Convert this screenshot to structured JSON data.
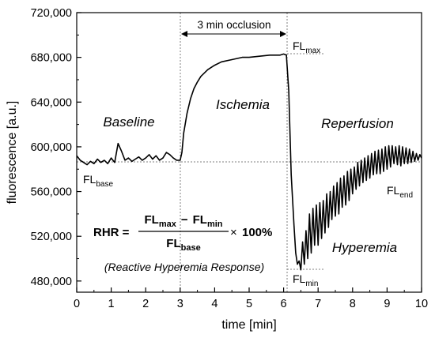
{
  "chart_data": {
    "type": "line",
    "title": "",
    "xlabel": "time [min]",
    "ylabel": "fluorescence [a.u.]",
    "xlim": [
      0,
      10
    ],
    "ylim": [
      470000,
      720000
    ],
    "x_ticks": [
      "0",
      "1",
      "2",
      "3",
      "4",
      "5",
      "6",
      "7",
      "8",
      "9",
      "10"
    ],
    "y_ticks": [
      "480,000",
      "520,000",
      "560,000",
      "600,000",
      "640,000",
      "680,000",
      "720,000"
    ],
    "grid": false,
    "series": [
      {
        "x": [
          0,
          0.1,
          0.2,
          0.3,
          0.4,
          0.5,
          0.6,
          0.7,
          0.8,
          0.9,
          1.0,
          1.1,
          1.2,
          1.3,
          1.4,
          1.5,
          1.6,
          1.7,
          1.8,
          1.9,
          2.0,
          2.1,
          2.2,
          2.3,
          2.4,
          2.5,
          2.6,
          2.7,
          2.8,
          2.9,
          3.0,
          3.05,
          3.1,
          3.2,
          3.3,
          3.4,
          3.5,
          3.6,
          3.8,
          4.0,
          4.2,
          4.5,
          4.8,
          5.0,
          5.3,
          5.6,
          5.9,
          6.0,
          6.08,
          6.15,
          6.22,
          6.3,
          6.35,
          6.4,
          6.45,
          6.5,
          6.55,
          6.6,
          6.65,
          6.7,
          6.75,
          6.8,
          6.85,
          6.9,
          6.95,
          7.0,
          7.05,
          7.1,
          7.15,
          7.2,
          7.25,
          7.3,
          7.35,
          7.4,
          7.45,
          7.5,
          7.55,
          7.6,
          7.65,
          7.7,
          7.75,
          7.8,
          7.85,
          7.9,
          7.95,
          8.0,
          8.05,
          8.1,
          8.15,
          8.2,
          8.25,
          8.3,
          8.35,
          8.4,
          8.45,
          8.5,
          8.55,
          8.6,
          8.65,
          8.7,
          8.75,
          8.8,
          8.85,
          8.9,
          8.95,
          9.0,
          9.05,
          9.1,
          9.15,
          9.2,
          9.25,
          9.3,
          9.35,
          9.4,
          9.45,
          9.5,
          9.55,
          9.6,
          9.65,
          9.7,
          9.75,
          9.8,
          9.85,
          9.9,
          9.95,
          10.0
        ],
        "y": [
          592000,
          588000,
          586000,
          584000,
          587000,
          585000,
          589000,
          586000,
          588000,
          585000,
          590000,
          586000,
          603000,
          596000,
          588000,
          590000,
          587000,
          589000,
          591000,
          588000,
          590000,
          593000,
          589000,
          592000,
          588000,
          590000,
          595000,
          593000,
          590000,
          588000,
          588000,
          595000,
          612000,
          630000,
          643000,
          652000,
          658000,
          663000,
          669000,
          673000,
          676000,
          678000,
          680000,
          680000,
          681000,
          682000,
          682000,
          683000,
          682000,
          650000,
          575000,
          530000,
          505000,
          495000,
          498000,
          490000,
          515000,
          495000,
          525000,
          500000,
          540000,
          505000,
          545000,
          512000,
          548000,
          512000,
          550000,
          518000,
          552000,
          523000,
          558000,
          528000,
          560000,
          535000,
          565000,
          538000,
          568000,
          540000,
          572000,
          546000,
          574000,
          548000,
          578000,
          552000,
          580000,
          558000,
          582000,
          562000,
          586000,
          565000,
          588000,
          568000,
          590000,
          570000,
          592000,
          572000,
          594000,
          575000,
          596000,
          576000,
          597000,
          576000,
          598000,
          578000,
          600000,
          580000,
          601000,
          582000,
          601000,
          585000,
          600000,
          584000,
          601000,
          583000,
          600000,
          585000,
          599000,
          585000,
          598000,
          586000,
          596000,
          587000,
          594000,
          588000,
          593000,
          590000
        ]
      }
    ],
    "annotations": {
      "occlusion": "3 min occlusion",
      "phases": [
        "Baseline",
        "Ischemia",
        "Reperfusion",
        "Hyperemia"
      ],
      "fl_main": "FL",
      "fl_max_sub": "max",
      "fl_base_sub": "base",
      "fl_end_sub": "end",
      "fl_min_sub": "min",
      "formula": {
        "lhs": "RHR =",
        "num_fl1": "FL",
        "num_sub1": "max",
        "minus": "−",
        "num_fl2": "FL",
        "num_sub2": "min",
        "den_fl": "FL",
        "den_sub": "base",
        "times": "×",
        "pct": "100%"
      },
      "caption": "(Reactive Hyperemia Response)"
    }
  }
}
